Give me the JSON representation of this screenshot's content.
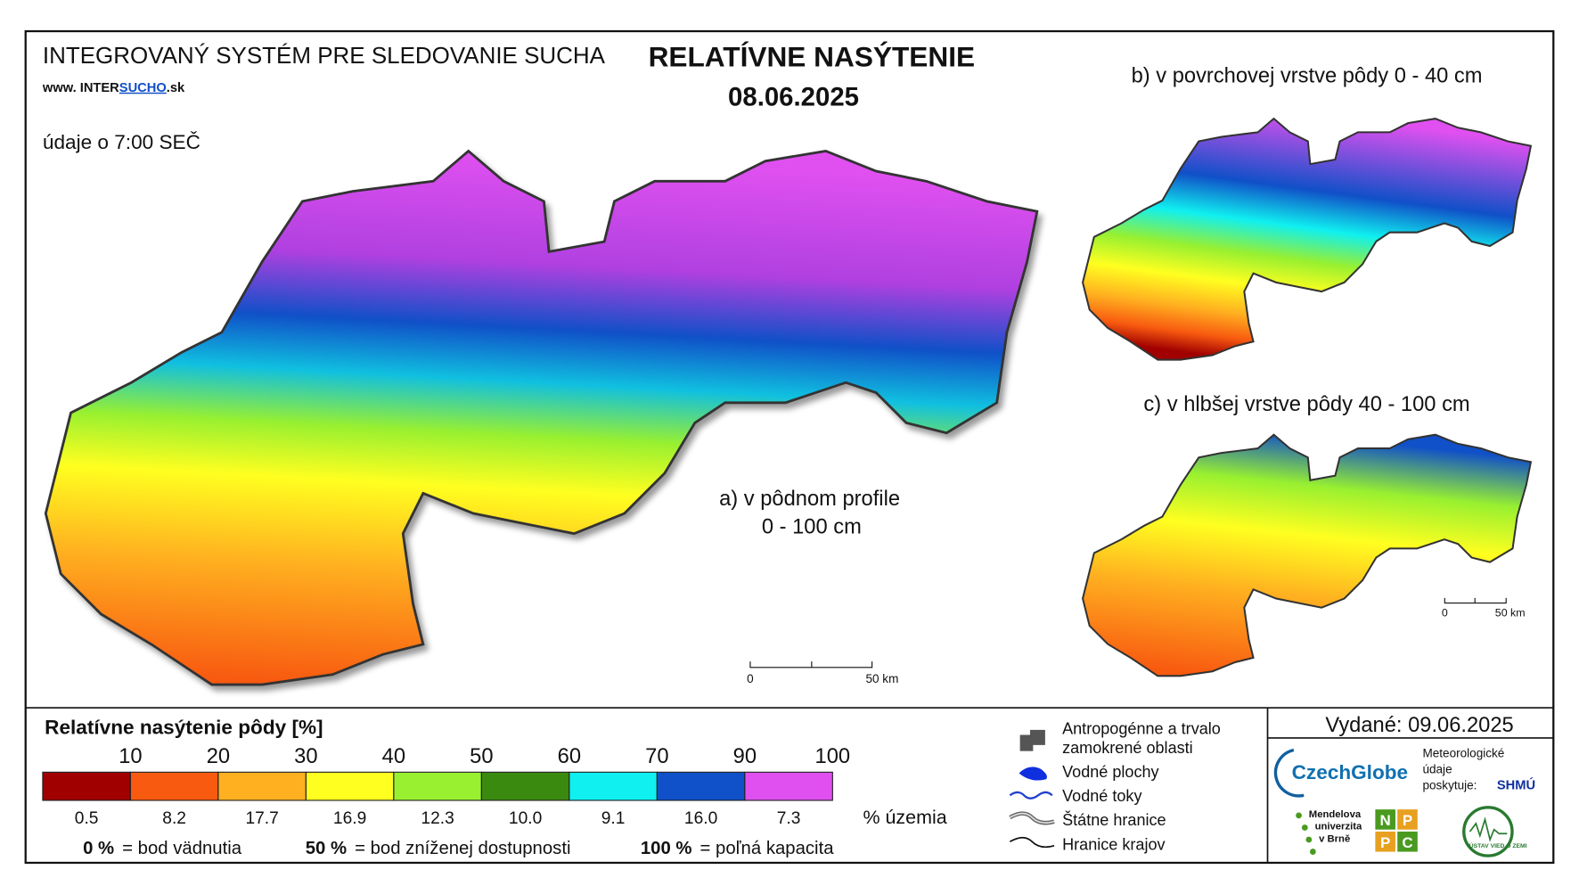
{
  "header": {
    "system_title": "INTEGROVANÝ SYSTÉM PRE SLEDOVANIE SUCHA",
    "website": [
      "www. INTER",
      "SUCHO",
      ".sk"
    ],
    "title": "RELATÍVNE NASÝTENIE",
    "date": "08.06.2025",
    "time_note": "údaje o 7:00 SEČ"
  },
  "maps": {
    "a": {
      "label": "a) v pôdnom profile",
      "depth": "0 - 100 cm"
    },
    "b": {
      "label": "b) v povrchovej vrstve pôdy 0 - 40 cm"
    },
    "c": {
      "label": "c) v hlbšej vrstve pôdy 40 - 100 cm"
    },
    "scale": {
      "start": "0",
      "end": "50 km"
    }
  },
  "legend": {
    "title": "Relatívne nasýtenie pôdy [%]",
    "classes": [
      {
        "color": "#a00000",
        "upper": 10,
        "share": "0.5"
      },
      {
        "color": "#f85a10",
        "upper": 20,
        "share": "8.2"
      },
      {
        "color": "#ffb020",
        "upper": 30,
        "share": "17.7"
      },
      {
        "color": "#ffff20",
        "upper": 40,
        "share": "16.9"
      },
      {
        "color": "#98f030",
        "upper": 50,
        "share": "12.3"
      },
      {
        "color": "#3a8a10",
        "upper": 60,
        "share": "10.0"
      },
      {
        "color": "#10f0f0",
        "upper": 70,
        "share": "9.1"
      },
      {
        "color": "#1050c8",
        "upper": 90,
        "share": "16.0"
      },
      {
        "color": "#e050f0",
        "upper": 100,
        "share": "7.3"
      }
    ],
    "share_unit": "% územia",
    "notes": [
      {
        "key": "0 %",
        "text": "= bod vädnutia"
      },
      {
        "key": "50 %",
        "text": "= bod zníženej dostupnosti"
      },
      {
        "key": "100 %",
        "text": "= poľná kapacita"
      }
    ]
  },
  "map_legend": [
    "Antropogénne a trvalo",
    "zamokrené oblasti",
    "Vodné plochy",
    "Vodné toky",
    "Štátne hranice",
    "Hranice krajov"
  ],
  "footer": {
    "issued": "Vydané: 09.06.2025",
    "czechglobe": "CzechGlobe",
    "meteo": [
      "Meteorologické",
      "údaje",
      "poskytuje:"
    ],
    "shmu": "SHMÚ",
    "mendel": [
      "Mendelova",
      "univerzita",
      "v Brně"
    ],
    "nppc": [
      "N",
      "P",
      "P",
      "C"
    ],
    "uvz": "ÚSTAV VIED O ZEMI"
  }
}
